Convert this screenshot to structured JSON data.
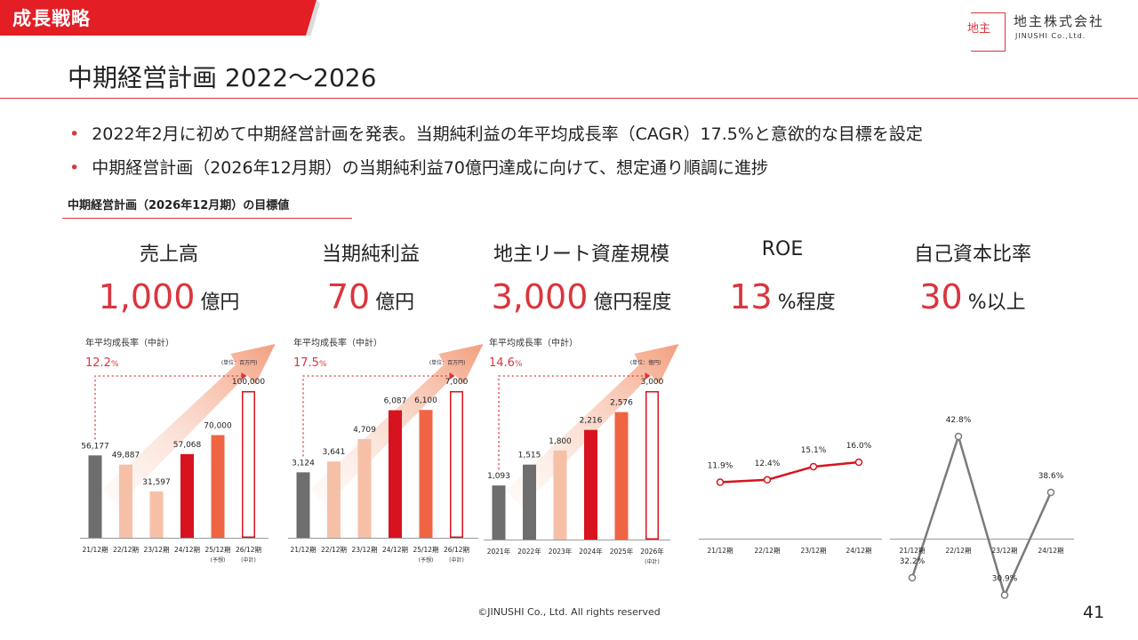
{
  "header": {
    "section_tag": "成長戦略",
    "title": "中期経営計画 2022～2026",
    "logo": {
      "glyph": "地主",
      "name": "地主株式会社",
      "name_en": "JINUSHI Co.,Ltd."
    }
  },
  "bullets": [
    "2022年2月に初めて中期経営計画を発表。当期純利益の年平均成長率（CAGR）17.5%と意欲的な目標を設定",
    "中期経営計画（2026年12月期）の当期純利益70億円達成に向けて、想定通り順調に進捗"
  ],
  "targets_heading": "中期経営計画（2026年12月期）の目標値",
  "kpis": [
    {
      "label": "売上高",
      "value": "1,000",
      "unit": "億円"
    },
    {
      "label": "当期純利益",
      "value": "70",
      "unit": "億円"
    },
    {
      "label": "地主リート資産規模",
      "value": "3,000",
      "unit": "億円程度"
    },
    {
      "label": "ROE",
      "value": "13",
      "unit": "%程度"
    },
    {
      "label": "自己資本比率",
      "value": "30",
      "unit": "%以上"
    }
  ],
  "colors": {
    "accent": "#d9363e",
    "grey_bar": "#6e6e6e",
    "light_bar": "#f6c0a7",
    "red_bar": "#d7131f",
    "orange_bar": "#ef6543",
    "target_outline": "#d7131f",
    "roe_line": "#d7131f",
    "equity_line": "#7a7a7a"
  },
  "chart_data": [
    {
      "type": "bar",
      "cagr_label": "年平均成長率（中計）",
      "cagr_value": "12.2",
      "cagr_unit": "%",
      "unit_note": "(単位：百万円)",
      "categories": [
        "21/12期",
        "22/12期",
        "23/12期",
        "24/12期",
        "25/12期",
        "26/12期"
      ],
      "category_notes": [
        "",
        "",
        "",
        "",
        "(予想)",
        "(中計)"
      ],
      "values": [
        56177,
        49887,
        31597,
        57068,
        70000,
        100000
      ],
      "value_labels": [
        "56,177",
        "49,887",
        "31,597",
        "57,068",
        "70,000",
        "100,000"
      ],
      "bar_styles": [
        "grey",
        "light",
        "light",
        "red",
        "orange",
        "outline"
      ],
      "ylim": [
        0,
        100000
      ]
    },
    {
      "type": "bar",
      "cagr_label": "年平均成長率（中計）",
      "cagr_value": "17.5",
      "cagr_unit": "%",
      "unit_note": "(単位：百万円)",
      "categories": [
        "21/12期",
        "22/12期",
        "23/12期",
        "24/12期",
        "25/12期",
        "26/12期"
      ],
      "category_notes": [
        "",
        "",
        "",
        "",
        "(予想)",
        "(中計)"
      ],
      "values": [
        3124,
        3641,
        4709,
        6087,
        6100,
        7000
      ],
      "value_labels": [
        "3,124",
        "3,641",
        "4,709",
        "6,087",
        "6,100",
        "7,000"
      ],
      "bar_styles": [
        "grey",
        "light",
        "light",
        "red",
        "orange",
        "outline"
      ],
      "ylim": [
        0,
        7000
      ]
    },
    {
      "type": "bar",
      "cagr_label": "年平均成長率（中計）",
      "cagr_value": "14.6",
      "cagr_unit": "%",
      "unit_note": "(単位：億円)",
      "categories": [
        "2021年",
        "2022年",
        "2023年",
        "2024年",
        "2025年",
        "2026年"
      ],
      "category_notes": [
        "",
        "",
        "",
        "",
        "",
        "(中計)"
      ],
      "values": [
        1093,
        1515,
        1800,
        2216,
        2576,
        3000
      ],
      "value_labels": [
        "1,093",
        "1,515",
        "1,800",
        "2,216",
        "2,576",
        "3,000"
      ],
      "bar_styles": [
        "grey",
        "grey",
        "light",
        "red",
        "orange",
        "outline"
      ],
      "ylim": [
        0,
        3000
      ]
    },
    {
      "type": "line",
      "categories": [
        "21/12期",
        "22/12期",
        "23/12期",
        "24/12期"
      ],
      "values": [
        11.9,
        12.4,
        15.1,
        16.0
      ],
      "value_labels": [
        "11.9%",
        "12.4%",
        "15.1%",
        "16.0%"
      ],
      "color": "red",
      "ylim": [
        0,
        20
      ]
    },
    {
      "type": "line",
      "categories": [
        "21/12期",
        "22/12期",
        "23/12期",
        "24/12期"
      ],
      "values": [
        32.2,
        42.8,
        30.9,
        38.6
      ],
      "value_labels": [
        "32.2%",
        "42.8%",
        "30.9%",
        "38.6%"
      ],
      "color": "grey",
      "ylim": [
        0,
        50
      ]
    }
  ],
  "footer": {
    "copyright": "©JINUSHI Co., Ltd. All rights reserved",
    "page_number": "41"
  }
}
